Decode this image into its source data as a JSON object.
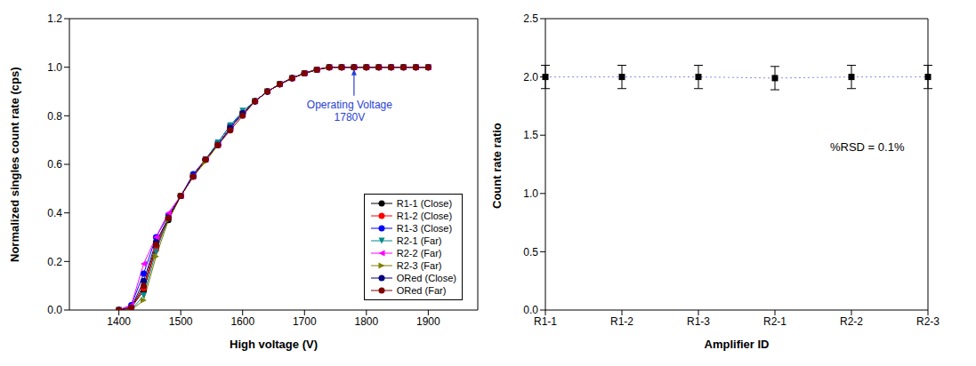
{
  "chart_data": [
    {
      "type": "line",
      "x_label": "High voltage (V)",
      "y_label": "Normalized singles count rate (cps)",
      "x": [
        1400,
        1420,
        1440,
        1460,
        1480,
        1500,
        1520,
        1540,
        1560,
        1580,
        1600,
        1620,
        1640,
        1660,
        1680,
        1700,
        1720,
        1740,
        1760,
        1780,
        1800,
        1820,
        1840,
        1860,
        1880,
        1900
      ],
      "xlim": [
        1320,
        1980
      ],
      "xticks": [
        1400,
        1500,
        1600,
        1700,
        1800,
        1900
      ],
      "ylim": [
        0,
        1.2
      ],
      "yticks": [
        {
          "value": 0,
          "label": "0.0"
        },
        0.2,
        0.4,
        0.6,
        0.8,
        {
          "value": 1,
          "label": "1.0"
        },
        1.2
      ],
      "grid": false,
      "legend": "lower right",
      "annotations": [
        {
          "text": "Operating Voltage\n1780V",
          "x": 1780,
          "y": 1.0
        }
      ],
      "series": [
        {
          "name": "R1-1 (Close)",
          "color": "#000000",
          "marker": "circle",
          "values": [
            0,
            0.01,
            0.08,
            0.26,
            0.37,
            0.47,
            0.55,
            0.62,
            0.68,
            0.75,
            0.81,
            0.86,
            0.9,
            0.93,
            0.955,
            0.975,
            0.99,
            1.0,
            1.0,
            1.0,
            1.0,
            1.0,
            1.0,
            1.0,
            1.0,
            1.0
          ]
        },
        {
          "name": "R1-2 (Close)",
          "color": "#ff0000",
          "marker": "circle",
          "values": [
            0,
            0.01,
            0.09,
            0.25,
            0.38,
            0.47,
            0.55,
            0.62,
            0.68,
            0.75,
            0.81,
            0.86,
            0.9,
            0.93,
            0.955,
            0.975,
            0.99,
            1.0,
            1.0,
            1.0,
            1.0,
            1.0,
            1.0,
            1.0,
            1.0,
            1.0
          ]
        },
        {
          "name": "R1-3 (Close)",
          "color": "#0000ff",
          "marker": "circle",
          "values": [
            0,
            0.02,
            0.15,
            0.3,
            0.39,
            0.47,
            0.56,
            0.62,
            0.69,
            0.76,
            0.81,
            0.86,
            0.9,
            0.93,
            0.955,
            0.975,
            0.99,
            1.0,
            1.0,
            1.0,
            1.0,
            1.0,
            1.0,
            1.0,
            1.0,
            1.0
          ]
        },
        {
          "name": "R2-1 (Far)",
          "color": "#008b8b",
          "marker": "triangle-down",
          "values": [
            0,
            0.0,
            0.06,
            0.24,
            0.38,
            0.47,
            0.55,
            0.62,
            0.69,
            0.76,
            0.82,
            0.86,
            0.9,
            0.93,
            0.955,
            0.975,
            0.99,
            1.0,
            1.0,
            1.0,
            1.0,
            1.0,
            1.0,
            1.0,
            1.0,
            1.0
          ]
        },
        {
          "name": "R2-2 (Far)",
          "color": "#ff00ff",
          "marker": "triangle-left",
          "values": [
            0,
            0.02,
            0.19,
            0.3,
            0.4,
            0.47,
            0.55,
            0.62,
            0.68,
            0.75,
            0.81,
            0.86,
            0.9,
            0.93,
            0.955,
            0.975,
            0.99,
            1.0,
            1.0,
            1.0,
            1.0,
            1.0,
            1.0,
            1.0,
            1.0,
            1.0
          ]
        },
        {
          "name": "R2-3 (Far)",
          "color": "#808000",
          "marker": "triangle-right",
          "values": [
            0,
            0.0,
            0.04,
            0.22,
            0.37,
            0.47,
            0.55,
            0.61,
            0.68,
            0.75,
            0.81,
            0.86,
            0.9,
            0.93,
            0.955,
            0.975,
            0.99,
            1.0,
            1.0,
            1.0,
            1.0,
            1.0,
            1.0,
            1.0,
            1.0,
            1.0
          ]
        },
        {
          "name": "ORed (Close)",
          "color": "#000080",
          "marker": "circle",
          "values": [
            0,
            0.01,
            0.12,
            0.28,
            0.38,
            0.47,
            0.55,
            0.62,
            0.68,
            0.75,
            0.81,
            0.86,
            0.9,
            0.93,
            0.955,
            0.975,
            0.99,
            1.0,
            1.0,
            1.0,
            1.0,
            1.0,
            1.0,
            1.0,
            1.0,
            1.0
          ]
        },
        {
          "name": "ORed (Far)",
          "color": "#800000",
          "marker": "circle",
          "values": [
            0,
            0.01,
            0.1,
            0.27,
            0.38,
            0.47,
            0.55,
            0.62,
            0.68,
            0.74,
            0.8,
            0.86,
            0.9,
            0.93,
            0.955,
            0.975,
            0.99,
            1.0,
            1.0,
            1.0,
            1.0,
            1.0,
            1.0,
            1.0,
            1.0,
            1.0
          ]
        }
      ]
    },
    {
      "type": "scatter",
      "x_label": "Amplifier ID",
      "y_label": "Count rate ratio",
      "categories": [
        "R1-1",
        "R1-2",
        "R1-3",
        "R2-1",
        "R2-2",
        "R2-3"
      ],
      "values": [
        2.0,
        2.0,
        2.0,
        1.99,
        2.0,
        2.0
      ],
      "errors": [
        0.1,
        0.1,
        0.1,
        0.1,
        0.1,
        0.1
      ],
      "color": "#000000",
      "marker": "square",
      "line_style": "dotted",
      "ylim": [
        0,
        2.5
      ],
      "yticks": [
        {
          "value": 0,
          "label": "0.0"
        },
        0.5,
        {
          "value": 1,
          "label": "1.0"
        },
        1.5,
        {
          "value": 2,
          "label": "2.0"
        },
        2.5
      ],
      "grid": false,
      "annotations": [
        {
          "text": "%RSD = 0.1%"
        }
      ]
    }
  ]
}
